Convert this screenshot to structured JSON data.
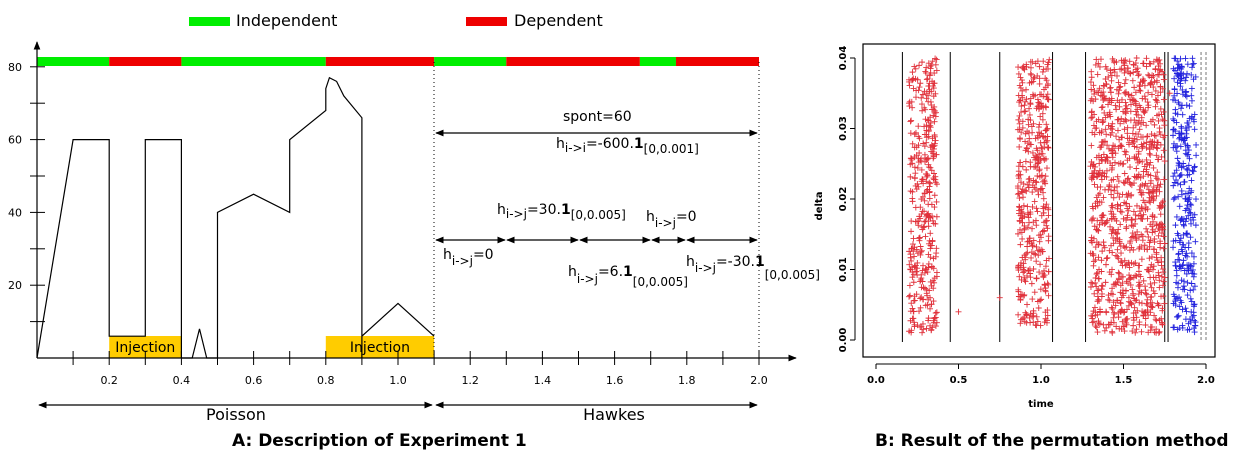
{
  "panel_a": {
    "legend": {
      "independent_label": "Independent",
      "dependent_label": "Dependent",
      "independent_color": "#00ee00",
      "dependent_color": "#ee0000"
    },
    "y_ticks": [
      "20",
      "40",
      "60",
      "80"
    ],
    "x_ticks": [
      "0.2",
      "0.4",
      "0.6",
      "0.8",
      "1.0",
      "1.2",
      "1.4",
      "1.6",
      "1.8",
      "2.0"
    ],
    "dependency_bar": [
      {
        "start": 0.0,
        "end": 0.2,
        "state": "independent"
      },
      {
        "start": 0.2,
        "end": 0.4,
        "state": "dependent"
      },
      {
        "start": 0.4,
        "end": 0.8,
        "state": "independent"
      },
      {
        "start": 0.8,
        "end": 1.1,
        "state": "dependent"
      },
      {
        "start": 1.1,
        "end": 1.3,
        "state": "independent"
      },
      {
        "start": 1.3,
        "end": 1.67,
        "state": "dependent"
      },
      {
        "start": 1.67,
        "end": 1.77,
        "state": "independent"
      },
      {
        "start": 1.77,
        "end": 2.0,
        "state": "dependent"
      }
    ],
    "injections": [
      {
        "label": "Injection",
        "start": 0.2,
        "end": 0.4,
        "color": "#ffcc00"
      },
      {
        "label": "Injection",
        "start": 0.8,
        "end": 1.1,
        "color": "#ffcc00"
      }
    ],
    "rate_curve": [
      [
        0,
        0
      ],
      [
        0.1,
        60
      ],
      [
        0.2,
        60
      ],
      [
        0.2,
        6
      ],
      [
        0.3,
        6
      ],
      [
        0.3,
        60
      ],
      [
        0.4,
        60
      ],
      [
        0.4,
        0
      ],
      [
        0.43,
        0
      ],
      [
        0.45,
        8
      ],
      [
        0.47,
        0
      ],
      [
        0.5,
        0
      ],
      [
        0.5,
        40
      ],
      [
        0.6,
        45
      ],
      [
        0.7,
        40
      ],
      [
        0.7,
        60
      ],
      [
        0.8,
        68
      ],
      [
        0.8,
        74
      ],
      [
        0.81,
        77
      ],
      [
        0.83,
        76
      ],
      [
        0.85,
        72
      ],
      [
        0.9,
        66
      ],
      [
        0.9,
        0
      ],
      [
        0.9,
        6
      ],
      [
        1.0,
        15
      ],
      [
        1.1,
        6
      ]
    ],
    "sections": {
      "poisson": "Poisson",
      "hawkes": "Hawkes"
    },
    "annotations": {
      "spont": "spont=60",
      "h_ii": {
        "sub": "i->i",
        "main": "=-600.",
        "bold": "1",
        "idx": "[0,0.001]"
      },
      "h_ij_0a": {
        "sub": "i->j",
        "main": "=0"
      },
      "h_ij_30": {
        "sub": "i->j",
        "main": "=30.",
        "bold": "1",
        "idx": "[0,0.005]"
      },
      "h_ij_6": {
        "sub": "i->j",
        "main": "=6.",
        "bold": "1",
        "idx": "[0,0.005]"
      },
      "h_ij_0b": {
        "sub": "i->j",
        "main": "=0"
      },
      "h_ij_m30": {
        "sub": "i->j",
        "main": "=-30.",
        "bold": "1",
        "idx": "[0,0.005]"
      }
    },
    "caption": "A: Description of Experiment 1"
  },
  "panel_b": {
    "xlabel": "time",
    "ylabel": "delta",
    "x_ticks": [
      "0.0",
      "0.5",
      "1.0",
      "1.5",
      "2.0"
    ],
    "y_ticks": [
      "0.00",
      "0.01",
      "0.02",
      "0.03",
      "0.04"
    ],
    "xlim": [
      0.0,
      2.0
    ],
    "ylim": [
      0.0,
      0.04
    ],
    "vertical_lines": [
      0.16,
      0.45,
      0.75,
      1.07,
      1.27,
      1.75,
      1.77,
      1.97,
      2.0
    ],
    "red_color": "#e0303a",
    "blue_color": "#2222dd",
    "caption": "B: Result of the permutation method"
  },
  "chart_data": [
    {
      "type": "line",
      "x": [
        0,
        0.1,
        0.2,
        0.2,
        0.3,
        0.3,
        0.4,
        0.4,
        0.43,
        0.45,
        0.47,
        0.5,
        0.5,
        0.6,
        0.7,
        0.7,
        0.8,
        0.8,
        0.81,
        0.83,
        0.85,
        0.9,
        0.9,
        0.9,
        1.0,
        1.1
      ],
      "y": [
        0,
        60,
        60,
        6,
        6,
        60,
        60,
        0,
        0,
        8,
        0,
        0,
        40,
        45,
        40,
        60,
        68,
        74,
        77,
        76,
        72,
        66,
        0,
        6,
        15,
        6
      ],
      "xlim": [
        0,
        2.0
      ],
      "ylim": [
        0,
        85
      ]
    },
    {
      "type": "scatter",
      "xlabel": "time",
      "ylabel": "delta",
      "xlim": [
        0,
        2.0
      ],
      "ylim": [
        0,
        0.04
      ],
      "series": [
        {
          "color": "red",
          "clusters": [
            {
              "x_range": [
                0.2,
                0.37
              ],
              "y_range": [
                0.001,
                0.04
              ]
            },
            {
              "x_range": [
                0.86,
                1.05
              ],
              "y_range": [
                0.002,
                0.04
              ]
            },
            {
              "x_range": [
                1.3,
                1.75
              ],
              "y_range": [
                0.001,
                0.04
              ]
            }
          ],
          "outliers": [
            [
              0.35,
              0.026
            ],
            [
              0.5,
              0.004
            ],
            [
              0.75,
              0.006
            ],
            [
              1.58,
              0.04
            ],
            [
              1.73,
              0.032
            ],
            [
              1.78,
              0.035
            ]
          ]
        },
        {
          "color": "blue",
          "clusters": [
            {
              "x_range": [
                1.8,
                1.94
              ],
              "y_range": [
                0.001,
                0.04
              ]
            }
          ]
        }
      ]
    }
  ]
}
